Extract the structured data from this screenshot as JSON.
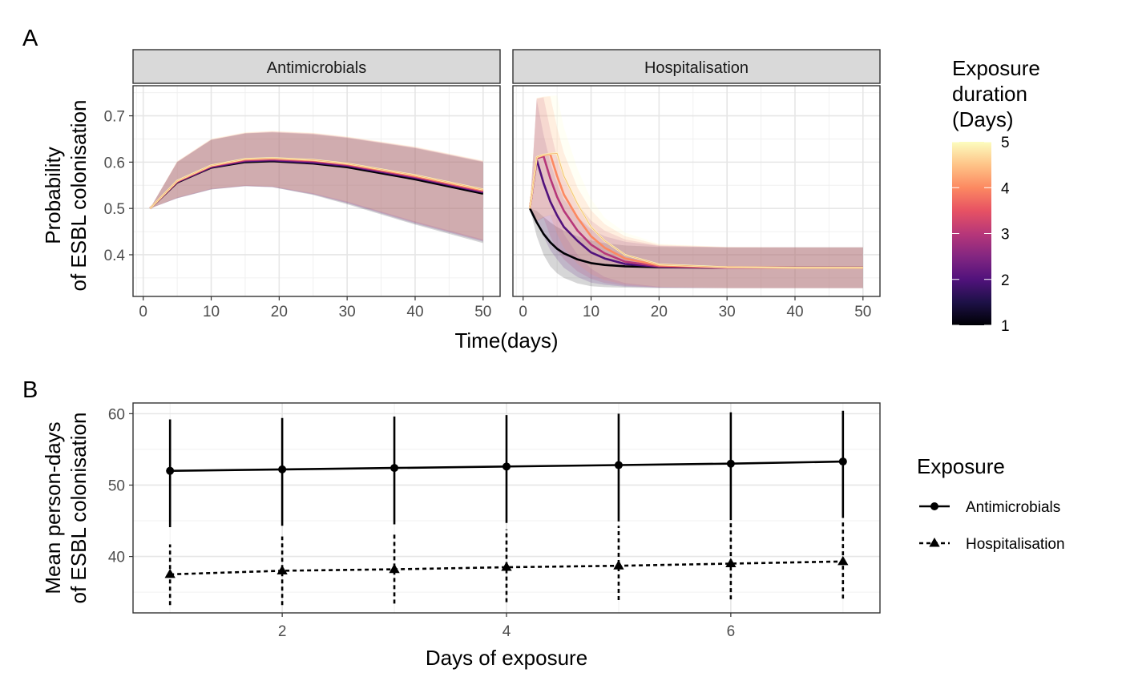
{
  "chart_data": [
    {
      "panel_tag": "A",
      "type": "line",
      "xlabel": "Time(days)",
      "ylabel_lines": [
        "Probability",
        "of ESBL colonisation"
      ],
      "xlim": [
        -1.5,
        52.5
      ],
      "ylim": [
        0.31,
        0.765
      ],
      "x_ticks": [
        0,
        10,
        20,
        30,
        40,
        50
      ],
      "y_ticks": [
        0.4,
        0.5,
        0.6,
        0.7
      ],
      "grid": true,
      "facets": [
        {
          "strip": "Antimicrobials",
          "series": [
            {
              "duration": 1,
              "color": "#000004",
              "x": [
                1,
                5,
                10,
                15,
                19,
                25,
                30,
                40,
                50
              ],
              "y": [
                0.5,
                0.556,
                0.588,
                0.6,
                0.602,
                0.597,
                0.589,
                0.563,
                0.532
              ],
              "lower": [
                0.5,
                0.522,
                0.541,
                0.548,
                0.546,
                0.529,
                0.509,
                0.465,
                0.425
              ],
              "upper": [
                0.5,
                0.6,
                0.648,
                0.662,
                0.664,
                0.66,
                0.652,
                0.63,
                0.6
              ]
            },
            {
              "duration": 2,
              "color": "#51127c",
              "x": [
                1,
                5,
                10,
                15,
                19,
                25,
                30,
                40,
                50
              ],
              "y": [
                0.5,
                0.557,
                0.589,
                0.602,
                0.604,
                0.599,
                0.592,
                0.566,
                0.535
              ],
              "lower": [
                0.5,
                0.522,
                0.541,
                0.548,
                0.546,
                0.53,
                0.511,
                0.467,
                0.428
              ],
              "upper": [
                0.5,
                0.6,
                0.648,
                0.662,
                0.665,
                0.661,
                0.653,
                0.631,
                0.601
              ]
            },
            {
              "duration": 3,
              "color": "#b73779",
              "x": [
                1,
                5,
                10,
                15,
                19,
                25,
                30,
                40,
                50
              ],
              "y": [
                0.5,
                0.558,
                0.591,
                0.604,
                0.606,
                0.602,
                0.594,
                0.568,
                0.537
              ],
              "lower": [
                0.5,
                0.523,
                0.542,
                0.549,
                0.547,
                0.531,
                0.512,
                0.469,
                0.43
              ],
              "upper": [
                0.5,
                0.601,
                0.649,
                0.663,
                0.666,
                0.662,
                0.654,
                0.632,
                0.602
              ]
            },
            {
              "duration": 4,
              "color": "#fc8961",
              "x": [
                1,
                5,
                10,
                15,
                19,
                25,
                30,
                40,
                50
              ],
              "y": [
                0.5,
                0.559,
                0.592,
                0.606,
                0.608,
                0.604,
                0.596,
                0.57,
                0.539
              ],
              "lower": [
                0.5,
                0.523,
                0.542,
                0.549,
                0.547,
                0.532,
                0.514,
                0.47,
                0.431
              ],
              "upper": [
                0.5,
                0.602,
                0.65,
                0.664,
                0.667,
                0.663,
                0.655,
                0.633,
                0.603
              ]
            },
            {
              "duration": 5,
              "color": "#fcfdbf",
              "x": [
                1,
                5,
                10,
                15,
                19,
                25,
                30,
                40,
                50
              ],
              "y": [
                0.5,
                0.56,
                0.593,
                0.607,
                0.609,
                0.605,
                0.597,
                0.572,
                0.541
              ],
              "lower": [
                0.5,
                0.524,
                0.543,
                0.55,
                0.548,
                0.533,
                0.515,
                0.472,
                0.433
              ],
              "upper": [
                0.5,
                0.602,
                0.651,
                0.665,
                0.668,
                0.664,
                0.656,
                0.634,
                0.604
              ]
            }
          ]
        },
        {
          "strip": "Hospitalisation",
          "series": [
            {
              "duration": 1,
              "color": "#000004",
              "x": [
                1,
                2,
                3,
                4,
                5,
                6,
                8,
                10,
                12,
                15,
                20,
                30,
                40,
                50
              ],
              "y": [
                0.5,
                0.47,
                0.445,
                0.427,
                0.413,
                0.403,
                0.39,
                0.382,
                0.378,
                0.375,
                0.373,
                0.372,
                0.372,
                0.372
              ],
              "lower": [
                0.5,
                0.44,
                0.4,
                0.375,
                0.36,
                0.35,
                0.338,
                0.332,
                0.33,
                0.329,
                0.328,
                0.328,
                0.328,
                0.328
              ],
              "upper": [
                0.5,
                0.495,
                0.482,
                0.47,
                0.46,
                0.452,
                0.44,
                0.431,
                0.425,
                0.42,
                0.417,
                0.416,
                0.416,
                0.416
              ]
            },
            {
              "duration": 2,
              "color": "#51127c",
              "x": [
                1,
                2,
                3,
                4,
                5,
                6,
                8,
                10,
                12,
                15,
                20,
                30,
                40,
                50
              ],
              "y": [
                0.5,
                0.605,
                0.555,
                0.515,
                0.485,
                0.46,
                0.43,
                0.405,
                0.392,
                0.38,
                0.374,
                0.372,
                0.372,
                0.372
              ],
              "lower": [
                0.5,
                0.47,
                0.44,
                0.41,
                0.39,
                0.372,
                0.352,
                0.34,
                0.335,
                0.331,
                0.329,
                0.328,
                0.328,
                0.328
              ],
              "upper": [
                0.5,
                0.735,
                0.66,
                0.6,
                0.555,
                0.52,
                0.482,
                0.455,
                0.44,
                0.428,
                0.419,
                0.416,
                0.416,
                0.416
              ]
            },
            {
              "duration": 3,
              "color": "#b73779",
              "x": [
                1,
                2,
                3,
                4,
                5,
                6,
                8,
                10,
                12,
                15,
                20,
                30,
                40,
                50
              ],
              "y": [
                0.5,
                0.608,
                0.613,
                0.565,
                0.525,
                0.495,
                0.452,
                0.422,
                0.403,
                0.385,
                0.375,
                0.372,
                0.372,
                0.372
              ],
              "lower": [
                0.5,
                0.472,
                0.48,
                0.44,
                0.41,
                0.39,
                0.364,
                0.348,
                0.339,
                0.333,
                0.329,
                0.328,
                0.328,
                0.328
              ],
              "upper": [
                0.5,
                0.737,
                0.74,
                0.67,
                0.61,
                0.565,
                0.51,
                0.474,
                0.452,
                0.433,
                0.42,
                0.416,
                0.416,
                0.416
              ]
            },
            {
              "duration": 4,
              "color": "#fc8961",
              "x": [
                1,
                2,
                3,
                4,
                5,
                6,
                8,
                10,
                12,
                15,
                20,
                30,
                40,
                50
              ],
              "y": [
                0.5,
                0.61,
                0.615,
                0.617,
                0.57,
                0.53,
                0.48,
                0.44,
                0.415,
                0.392,
                0.377,
                0.373,
                0.372,
                0.372
              ],
              "lower": [
                0.5,
                0.473,
                0.481,
                0.485,
                0.445,
                0.415,
                0.38,
                0.358,
                0.345,
                0.336,
                0.33,
                0.328,
                0.328,
                0.328
              ],
              "upper": [
                0.5,
                0.738,
                0.741,
                0.742,
                0.675,
                0.62,
                0.545,
                0.496,
                0.466,
                0.44,
                0.422,
                0.417,
                0.416,
                0.416
              ]
            },
            {
              "duration": 5,
              "color": "#fcfdbf",
              "x": [
                1,
                2,
                3,
                4,
                5,
                6,
                8,
                10,
                12,
                15,
                20,
                30,
                40,
                50
              ],
              "y": [
                0.5,
                0.611,
                0.616,
                0.618,
                0.619,
                0.57,
                0.51,
                0.46,
                0.43,
                0.4,
                0.379,
                0.373,
                0.372,
                0.372
              ],
              "lower": [
                0.5,
                0.474,
                0.482,
                0.486,
                0.488,
                0.445,
                0.4,
                0.37,
                0.352,
                0.339,
                0.331,
                0.328,
                0.328,
                0.328
              ],
              "upper": [
                0.5,
                0.739,
                0.742,
                0.743,
                0.744,
                0.675,
                0.585,
                0.52,
                0.48,
                0.448,
                0.424,
                0.417,
                0.416,
                0.416
              ]
            }
          ]
        }
      ],
      "legend": {
        "title_lines": [
          "Exposure",
          "duration",
          "(Days)"
        ],
        "type": "colorbar",
        "placement": "right",
        "ticks": [
          1,
          2,
          3,
          4,
          5
        ],
        "colors": [
          "#000004",
          "#1d1147",
          "#51127c",
          "#832681",
          "#b73779",
          "#e75263",
          "#fc8961",
          "#fec488",
          "#fcfdbf"
        ]
      }
    },
    {
      "panel_tag": "B",
      "type": "line",
      "xlabel": "Days of exposure",
      "ylabel_lines": [
        "Mean person-days",
        "of ESBL colonisation"
      ],
      "xlim": [
        0.67,
        7.33
      ],
      "ylim": [
        32.1,
        61.5
      ],
      "x_ticks": [
        2,
        4,
        6
      ],
      "y_ticks": [
        40,
        50,
        60
      ],
      "grid": true,
      "series": [
        {
          "name": "Antimicrobials",
          "marker": "circle",
          "linestyle": "solid",
          "x": [
            1,
            2,
            3,
            4,
            5,
            6,
            7
          ],
          "y": [
            52.0,
            52.2,
            52.4,
            52.6,
            52.8,
            53.0,
            53.3
          ],
          "lower": [
            44.1,
            44.3,
            44.5,
            44.7,
            44.9,
            45.1,
            45.4
          ],
          "upper": [
            59.2,
            59.4,
            59.6,
            59.8,
            60.0,
            60.2,
            60.4
          ]
        },
        {
          "name": "Hospitalisation",
          "marker": "triangle",
          "linestyle": "dashed",
          "x": [
            1,
            2,
            3,
            4,
            5,
            6,
            7
          ],
          "y": [
            37.5,
            38.0,
            38.2,
            38.5,
            38.7,
            39.0,
            39.3
          ],
          "lower": [
            33.2,
            33.2,
            33.4,
            33.6,
            33.9,
            34.0,
            34.1
          ],
          "upper": [
            41.7,
            42.8,
            43.3,
            43.8,
            44.3,
            44.8,
            45.2
          ]
        }
      ],
      "legend": {
        "title": "Exposure",
        "placement": "right"
      }
    }
  ]
}
